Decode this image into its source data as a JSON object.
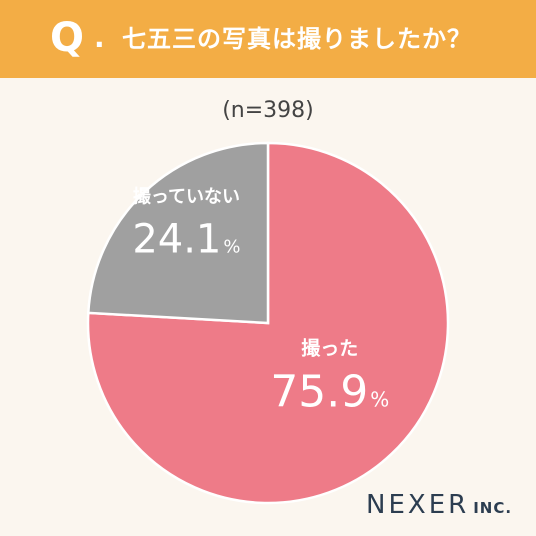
{
  "header": {
    "q_mark": "Q",
    "q_dot": ".",
    "question": "七五三の写真は撮りましたか？"
  },
  "sample_size": "(n=398)",
  "chart_data": {
    "type": "pie",
    "start": "12 o'clock",
    "direction": "clockwise",
    "slices": [
      {
        "label": "撮った",
        "value": 75.9,
        "display": "75.9",
        "unit": "%",
        "color": "#ee7b88"
      },
      {
        "label": "撮っていない",
        "value": 24.1,
        "display": "24.1",
        "unit": "%",
        "color": "#a0a0a0"
      }
    ]
  },
  "logo": {
    "main": "NEXER",
    "sub": "INC."
  }
}
